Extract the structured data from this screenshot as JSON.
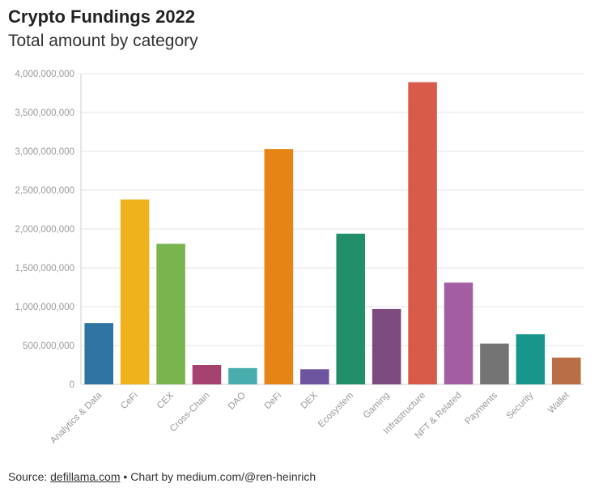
{
  "title": "Crypto Fundings 2022",
  "subtitle": "Total amount by category",
  "footer": {
    "source_label": "Source:",
    "source_link": "defillama.com",
    "separator": "•",
    "credit": "Chart by medium.com/@ren-heinrich"
  },
  "chart_data": {
    "type": "bar",
    "title": "Crypto Fundings 2022",
    "subtitle": "Total amount by category",
    "xlabel": "",
    "ylabel": "",
    "ylim": [
      0,
      4000000000
    ],
    "grid": true,
    "yticks": [
      0,
      500000000,
      1000000000,
      1500000000,
      2000000000,
      2500000000,
      3000000000,
      3500000000,
      4000000000
    ],
    "ytick_labels": [
      "0",
      "500,000,000",
      "1,000,000,000",
      "1,500,000,000",
      "2,000,000,000",
      "2,500,000,000",
      "3,000,000,000",
      "3,500,000,000",
      "4,000,000,000"
    ],
    "categories": [
      "Analytics & Data",
      "CeFi",
      "CEX",
      "Cross-Chain",
      "DAO",
      "DeFi",
      "DEX",
      "Ecosystem",
      "Gaming",
      "Infrastructure",
      "NFT & Related",
      "Payments",
      "Security",
      "Wallet"
    ],
    "values": [
      790000000,
      2380000000,
      1810000000,
      250000000,
      210000000,
      3030000000,
      195000000,
      1940000000,
      970000000,
      3890000000,
      1310000000,
      525000000,
      645000000,
      345000000
    ],
    "colors": [
      "#2e74a3",
      "#efb11c",
      "#79b44f",
      "#a6426f",
      "#4aadad",
      "#e68516",
      "#6d55a0",
      "#21906a",
      "#7c4a7c",
      "#d85a48",
      "#a35ea3",
      "#747474",
      "#17978c",
      "#b96e45"
    ]
  }
}
